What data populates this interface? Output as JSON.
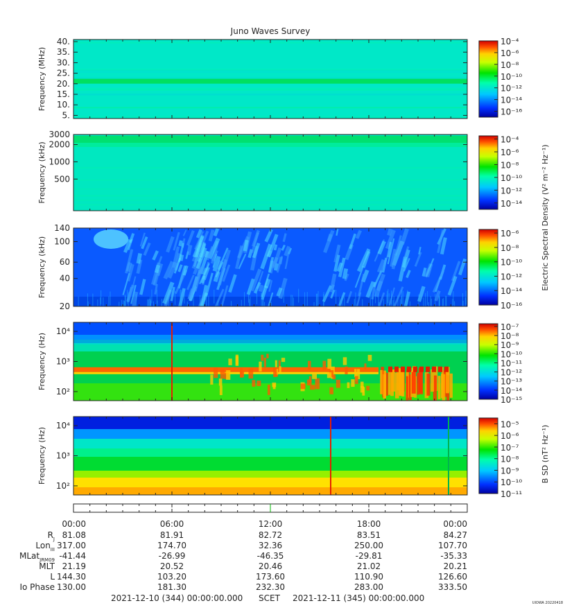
{
  "title": "Juno Waves Survey",
  "footer": {
    "start": "2021-12-10 (344) 00:00:00.000",
    "scet": "SCET",
    "end": "2021-12-11 (345) 00:00:00.000",
    "stamp": "UIOWA 20220418"
  },
  "colorbars": {
    "electric_label": "Electric Spectral Density (V² m⁻² Hz⁻¹)",
    "magnetic_label": "B SD (nT² Hz⁻¹)"
  },
  "chart_data": [
    {
      "type": "heatmap",
      "panel": "HFR high",
      "ylabel": "Frequency (MHz)",
      "yticks": [
        "40.",
        "35.",
        "30.",
        "25.",
        "20.",
        "15.",
        "10.",
        "5."
      ],
      "ylim": [
        3.5,
        41
      ],
      "colorbar_ticks": [
        "10⁻⁴",
        "10⁻⁶",
        "10⁻⁸",
        "10⁻¹⁰",
        "10⁻¹²",
        "10⁻¹⁴",
        "10⁻¹⁶"
      ],
      "colorbar_range_exp": [
        -17,
        -4
      ]
    },
    {
      "type": "heatmap",
      "panel": "HFR low",
      "ylabel": "Frequency (kHz)",
      "yscale": "log",
      "yticks": [
        "3000",
        "2000",
        "1000",
        "500"
      ],
      "ylim": [
        140,
        3000
      ],
      "colorbar_ticks": [
        "10⁻⁴",
        "10⁻⁶",
        "10⁻⁸",
        "10⁻¹⁰",
        "10⁻¹²",
        "10⁻¹⁴"
      ],
      "colorbar_range_exp": [
        -15,
        -3.5
      ]
    },
    {
      "type": "heatmap",
      "panel": "LFR high",
      "ylabel": "Frequency (kHz)",
      "yscale": "log",
      "yticks": [
        "140",
        "100",
        "60",
        "40",
        "20"
      ],
      "ylim": [
        20,
        140
      ],
      "colorbar_ticks": [
        "10⁻⁶",
        "10⁻⁸",
        "10⁻¹⁰",
        "10⁻¹²",
        "10⁻¹⁴",
        "10⁻¹⁶"
      ],
      "colorbar_range_exp": [
        -16,
        -5.5
      ]
    },
    {
      "type": "heatmap",
      "panel": "LFR low",
      "ylabel": "Frequency (Hz)",
      "yscale": "log",
      "yticks": [
        "10⁴",
        "10³",
        "10²"
      ],
      "ylim": [
        50,
        20000
      ],
      "colorbar_ticks": [
        "10⁻⁷",
        "10⁻⁸",
        "10⁻⁹",
        "10⁻¹⁰",
        "10⁻¹¹",
        "10⁻¹²",
        "10⁻¹³",
        "10⁻¹⁴",
        "10⁻¹⁵"
      ],
      "colorbar_range_exp": [
        -15,
        -6.7
      ]
    },
    {
      "type": "heatmap",
      "panel": "Magnetic",
      "ylabel": "Frequency (Hz)",
      "yscale": "log",
      "yticks": [
        "10⁴",
        "10³",
        "10²"
      ],
      "ylim": [
        50,
        20000
      ],
      "colorbar_ticks": [
        "10⁻⁵",
        "10⁻⁶",
        "10⁻⁷",
        "10⁻⁸",
        "10⁻⁹",
        "10⁻¹⁰",
        "10⁻¹¹"
      ],
      "colorbar_range_exp": [
        -11,
        -4.5
      ]
    }
  ],
  "time_axis": {
    "ticks": [
      "00:00",
      "06:00",
      "12:00",
      "18:00",
      "00:00"
    ],
    "row_labels": [
      "R",
      "Lon",
      "MLat",
      "MLT",
      "L",
      "Io Phase"
    ],
    "row_subs": [
      "J",
      "III",
      "JRM09",
      "",
      "",
      ""
    ],
    "rows": [
      [
        "81.08",
        "81.91",
        "82.72",
        "83.51",
        "84.27"
      ],
      [
        "317.00",
        "174.70",
        "32.36",
        "250.00",
        "107.70"
      ],
      [
        "-41.44",
        "-26.99",
        "-46.35",
        "-29.81",
        "-35.33"
      ],
      [
        "21.19",
        "20.52",
        "20.46",
        "21.02",
        "20.21"
      ],
      [
        "144.30",
        "103.20",
        "173.60",
        "110.90",
        "126.60"
      ],
      [
        "130.00",
        "181.30",
        "232.30",
        "283.00",
        "333.50"
      ]
    ]
  }
}
